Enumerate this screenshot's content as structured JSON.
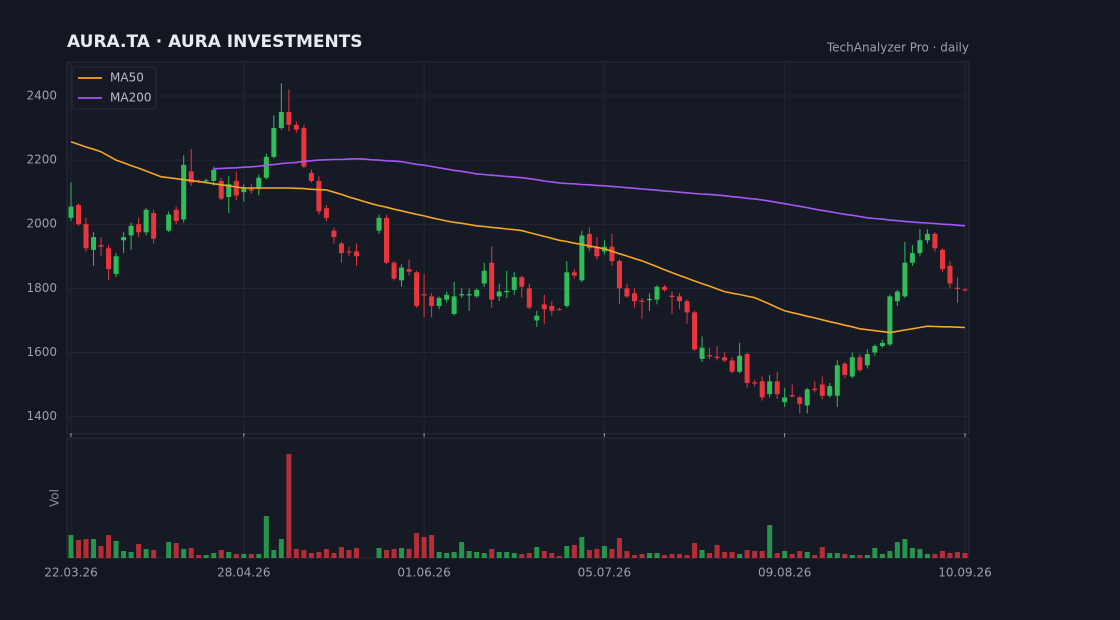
{
  "chart_data": {
    "type": "candlestick",
    "title": "AURA.TA  ·  AURA INVESTMENTS",
    "subtitle": "TechAnalyzer Pro · daily",
    "volume_label": "Vol",
    "categories": [
      "22.03.26",
      null,
      null,
      null,
      null,
      null,
      null,
      null,
      null,
      null,
      null,
      null,
      null,
      null,
      null,
      null,
      null,
      null,
      null,
      null,
      null,
      null,
      null,
      "28.04.26",
      null,
      null,
      null,
      null,
      null,
      null,
      null,
      null,
      null,
      null,
      null,
      null,
      null,
      null,
      null,
      null,
      null,
      null,
      null,
      null,
      null,
      null,
      null,
      "01.06.26",
      null,
      null,
      null,
      null,
      null,
      null,
      null,
      null,
      null,
      null,
      null,
      null,
      null,
      null,
      null,
      null,
      null,
      null,
      null,
      null,
      null,
      null,
      null,
      "05.07.26",
      null,
      null,
      null,
      null,
      null,
      null,
      null,
      null,
      null,
      null,
      null,
      null,
      null,
      null,
      null,
      null,
      null,
      null,
      null,
      null,
      null,
      null,
      null,
      "09.08.26",
      null,
      null,
      null,
      null,
      null,
      null,
      null,
      null,
      null,
      null,
      null,
      null,
      null,
      null,
      null,
      null,
      null,
      null,
      null,
      null,
      null,
      null,
      null,
      "10.09.26"
    ],
    "open": [
      2020,
      2060,
      2000,
      1920,
      1935,
      1925,
      1845,
      1950,
      1965,
      2000,
      1975,
      2035,
      null,
      1980,
      2045,
      2015,
      2165,
      2135,
      2135,
      2135,
      2135,
      2085,
      2135,
      2100,
      2110,
      2110,
      2145,
      2210,
      2300,
      2350,
      2310,
      2300,
      2160,
      2135,
      2050,
      1980,
      1940,
      1915,
      1915,
      null,
      null,
      1980,
      2020,
      1880,
      1825,
      1860,
      1850,
      1782,
      1775,
      1745,
      1765,
      1720,
      1778,
      1778,
      1775,
      1815,
      1880,
      1775,
      1788,
      1795,
      1835,
      1800,
      1700,
      1750,
      1745,
      1735,
      1745,
      1850,
      1825,
      1970,
      1930,
      1915,
      1930,
      1885,
      1800,
      1785,
      1762,
      1763,
      1765,
      1805,
      1777,
      1775,
      1760,
      1725,
      1580,
      1592,
      1587,
      1585,
      1575,
      1540,
      1595,
      1507,
      1510,
      1470,
      1510,
      1445,
      1467,
      1460,
      1435,
      1487,
      1500,
      1465,
      1465,
      1565,
      1525,
      1585,
      1560,
      1600,
      1620,
      1625,
      1760,
      1775,
      1880,
      1910,
      1950,
      1970,
      1920,
      1870,
      1802,
      1797
    ],
    "high": [
      2130,
      2065,
      2020,
      1975,
      1960,
      1935,
      1910,
      1975,
      2005,
      2020,
      2050,
      2045,
      null,
      2040,
      2055,
      2215,
      2235,
      2140,
      2142,
      2180,
      2145,
      2150,
      2165,
      2125,
      2125,
      2155,
      2220,
      2340,
      2440,
      2420,
      2320,
      2310,
      2170,
      2150,
      2060,
      1990,
      1945,
      1930,
      1940,
      null,
      null,
      2030,
      2030,
      1885,
      1875,
      1890,
      1855,
      1845,
      1785,
      1775,
      1790,
      1820,
      1800,
      1800,
      1800,
      1880,
      1930,
      1815,
      1855,
      1850,
      1840,
      1815,
      1730,
      1780,
      1760,
      1740,
      1885,
      1860,
      1980,
      1990,
      1960,
      1950,
      1970,
      1890,
      1815,
      1800,
      1770,
      1785,
      1810,
      1810,
      1790,
      1785,
      1765,
      1730,
      1650,
      1615,
      1620,
      1600,
      1585,
      1630,
      1600,
      1515,
      1525,
      1530,
      1540,
      1490,
      1500,
      1465,
      1490,
      1510,
      1525,
      1505,
      1575,
      1570,
      1600,
      1595,
      1610,
      1625,
      1640,
      1780,
      1795,
      1945,
      1935,
      1985,
      1985,
      1975,
      1925,
      1885,
      1835,
      1800
    ],
    "low": [
      2010,
      1995,
      1915,
      1870,
      1900,
      1825,
      1835,
      1910,
      1920,
      1960,
      1965,
      1940,
      null,
      1975,
      2000,
      2005,
      2120,
      2128,
      2130,
      2120,
      2075,
      2035,
      2075,
      2070,
      2095,
      2090,
      2140,
      2205,
      2295,
      2290,
      2285,
      2175,
      2130,
      2030,
      2010,
      1940,
      1880,
      1900,
      1870,
      null,
      null,
      1970,
      1875,
      1825,
      1805,
      1840,
      1740,
      1710,
      1710,
      1735,
      1755,
      1715,
      1770,
      1730,
      1770,
      1805,
      1740,
      1760,
      1770,
      1780,
      1770,
      1735,
      1680,
      1690,
      1715,
      1730,
      1740,
      1830,
      1820,
      1915,
      1890,
      1905,
      1870,
      1750,
      1770,
      1740,
      1705,
      1730,
      1750,
      1790,
      1720,
      1735,
      1690,
      1605,
      1570,
      1580,
      1575,
      1570,
      1535,
      1535,
      1490,
      1495,
      1450,
      1460,
      1455,
      1430,
      1460,
      1410,
      1410,
      1475,
      1455,
      1460,
      1430,
      1520,
      1520,
      1540,
      1550,
      1590,
      1615,
      1620,
      1745,
      1770,
      1870,
      1900,
      1940,
      1915,
      1850,
      1800,
      1755,
      1790
    ],
    "close": [
      2055,
      2000,
      1925,
      1960,
      1930,
      1860,
      1900,
      1960,
      1995,
      1975,
      2045,
      1955,
      null,
      2030,
      2010,
      2185,
      2130,
      2132,
      2137,
      2170,
      2080,
      2125,
      2090,
      2115,
      2105,
      2145,
      2210,
      2300,
      2350,
      2310,
      2295,
      2180,
      2135,
      2040,
      2020,
      1960,
      1910,
      1912,
      1900,
      null,
      null,
      2020,
      1880,
      1830,
      1865,
      1852,
      1745,
      1778,
      1745,
      1770,
      1780,
      1775,
      1782,
      1782,
      1795,
      1855,
      1765,
      1790,
      1792,
      1835,
      1805,
      1740,
      1715,
      1735,
      1730,
      1733,
      1850,
      1840,
      1965,
      1925,
      1900,
      1930,
      1885,
      1800,
      1775,
      1760,
      1758,
      1767,
      1805,
      1795,
      1773,
      1760,
      1725,
      1610,
      1615,
      1588,
      1583,
      1575,
      1540,
      1590,
      1505,
      1503,
      1460,
      1510,
      1470,
      1460,
      1463,
      1440,
      1485,
      1483,
      1465,
      1495,
      1560,
      1530,
      1585,
      1545,
      1595,
      1620,
      1630,
      1775,
      1790,
      1880,
      1910,
      1950,
      1970,
      1925,
      1860,
      1815,
      1798,
      1795
    ],
    "volume": [
      23,
      18,
      19,
      19,
      12,
      23,
      17,
      7,
      6,
      14,
      9,
      8,
      null,
      16,
      15,
      9,
      10,
      3,
      3,
      5,
      8,
      6,
      4,
      4,
      4,
      4,
      42,
      8,
      19,
      104,
      9,
      8,
      5,
      6,
      9,
      5,
      11,
      8,
      10,
      null,
      null,
      10,
      8,
      9,
      10,
      9,
      25,
      21,
      23,
      6,
      5,
      6,
      16,
      7,
      6,
      5,
      9,
      6,
      6,
      5,
      4,
      5,
      11,
      7,
      5,
      2,
      12,
      13,
      21,
      8,
      9,
      12,
      9,
      20,
      7,
      3,
      4,
      5,
      5,
      3,
      4,
      4,
      3,
      15,
      8,
      5,
      13,
      6,
      6,
      4,
      8,
      7,
      7,
      33,
      5,
      7,
      4,
      7,
      6,
      3,
      11,
      5,
      5,
      4,
      3,
      3,
      3,
      10,
      4,
      7,
      16,
      19,
      10,
      9,
      4,
      4,
      7,
      5,
      6,
      5
    ],
    "up_color": "#2ebd59",
    "down_color": "#e8363f",
    "ylim": [
      1352,
      2506
    ],
    "yticks": [
      1400,
      1600,
      1800,
      2000,
      2200,
      2400
    ],
    "volume_ylim": [
      0,
      120
    ],
    "grid": true,
    "legend": "upper left",
    "series": [
      {
        "name": "MA50",
        "color": "#f5a623",
        "values": [
          2257,
          2249,
          2241,
          2234,
          2226,
          2213,
          2200,
          2192,
          2183,
          2175,
          2166,
          2157,
          2148,
          2145,
          2142,
          2139,
          2136,
          2133,
          2130,
          2126,
          2123,
          2120,
          2116,
          2113,
          2113,
          2113,
          2113,
          2113,
          2113,
          2113,
          2112,
          2111,
          2109,
          2108,
          2107,
          2100,
          2093,
          2085,
          2078,
          2071,
          2064,
          2058,
          2053,
          2047,
          2042,
          2036,
          2031,
          2026,
          2020,
          2015,
          2010,
          2006,
          2003,
          1999,
          1995,
          1993,
          1990,
          1988,
          1985,
          1983,
          1980,
          1974,
          1968,
          1962,
          1956,
          1950,
          1946,
          1941,
          1937,
          1932,
          1928,
          1923,
          1916,
          1908,
          1901,
          1893,
          1886,
          1877,
          1868,
          1858,
          1849,
          1840,
          1832,
          1823,
          1815,
          1807,
          1798,
          1790,
          1785,
          1781,
          1776,
          1771,
          1761,
          1751,
          1740,
          1730,
          1724,
          1719,
          1713,
          1708,
          1702,
          1696,
          1691,
          1685,
          1680,
          1674,
          1671,
          1668,
          1665,
          1662,
          1666,
          1670,
          1674,
          1678,
          1682,
          1681,
          1680,
          1680,
          1679,
          1678
        ]
      },
      {
        "name": "MA200",
        "color": "#a855f7",
        "values": [
          null,
          null,
          null,
          null,
          null,
          null,
          null,
          null,
          null,
          null,
          null,
          null,
          null,
          null,
          null,
          null,
          null,
          null,
          null,
          2173,
          2174,
          2175,
          2176,
          2178,
          2179,
          2181,
          2184,
          2186,
          2189,
          2191,
          2193,
          2196,
          2198,
          2200,
          2201,
          2202,
          2202,
          2203,
          2204,
          2203,
          2201,
          2200,
          2198,
          2197,
          2195,
          2191,
          2187,
          2184,
          2180,
          2176,
          2172,
          2168,
          2165,
          2161,
          2157,
          2155,
          2153,
          2151,
          2149,
          2147,
          2145,
          2142,
          2139,
          2135,
          2132,
          2129,
          2127,
          2126,
          2124,
          2123,
          2121,
          2120,
          2118,
          2116,
          2114,
          2112,
          2110,
          2108,
          2106,
          2104,
          2102,
          2100,
          2098,
          2096,
          2094,
          2093,
          2091,
          2089,
          2086,
          2084,
          2081,
          2079,
          2076,
          2072,
          2068,
          2064,
          2060,
          2056,
          2052,
          2047,
          2043,
          2039,
          2035,
          2031,
          2028,
          2024,
          2020,
          2018,
          2016,
          2013,
          2011,
          2009,
          2007,
          2005,
          2004,
          2002,
          2000,
          1999,
          1997,
          1995
        ]
      }
    ]
  }
}
